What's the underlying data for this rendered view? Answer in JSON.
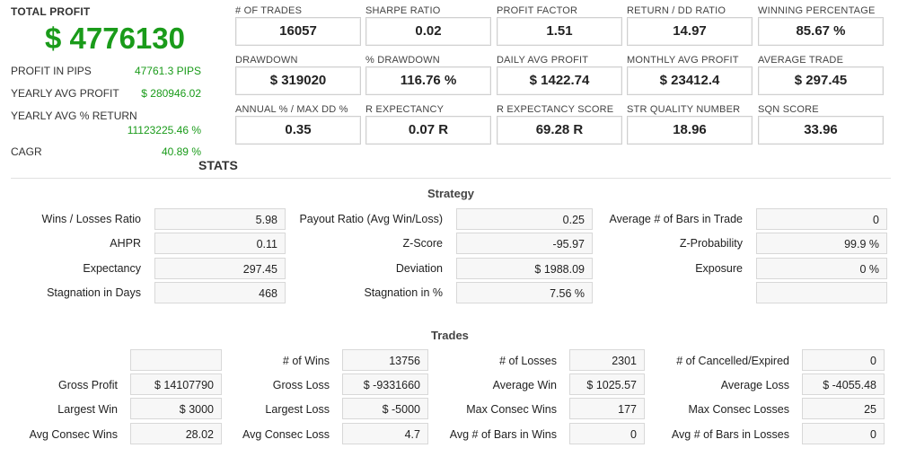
{
  "summary": {
    "total_profit_label": "TOTAL PROFIT",
    "total_profit_value": "$ 4776130",
    "rows": [
      {
        "label": "PROFIT IN PIPS",
        "value": "47761.3 PIPS"
      },
      {
        "label": "YEARLY AVG PROFIT",
        "value": "$ 280946.02"
      },
      {
        "label": "YEARLY AVG % RETURN",
        "value": "11123225.46 %"
      },
      {
        "label": "CAGR",
        "value": "40.89 %"
      }
    ]
  },
  "metrics": [
    {
      "label": "# OF TRADES",
      "value": "16057"
    },
    {
      "label": "SHARPE RATIO",
      "value": "0.02"
    },
    {
      "label": "PROFIT FACTOR",
      "value": "1.51"
    },
    {
      "label": "RETURN / DD RATIO",
      "value": "14.97"
    },
    {
      "label": "WINNING PERCENTAGE",
      "value": "85.67 %"
    },
    {
      "label": "DRAWDOWN",
      "value": "$ 319020"
    },
    {
      "label": "% DRAWDOWN",
      "value": "116.76 %"
    },
    {
      "label": "DAILY AVG PROFIT",
      "value": "$ 1422.74"
    },
    {
      "label": "MONTHLY AVG PROFIT",
      "value": "$ 23412.4"
    },
    {
      "label": "AVERAGE TRADE",
      "value": "$ 297.45"
    },
    {
      "label": "ANNUAL % / MAX DD %",
      "value": "0.35"
    },
    {
      "label": "R EXPECTANCY",
      "value": "0.07 R"
    },
    {
      "label": "R EXPECTANCY SCORE",
      "value": "69.28 R"
    },
    {
      "label": "STR QUALITY NUMBER",
      "value": "18.96"
    },
    {
      "label": "SQN SCORE",
      "value": "33.96"
    }
  ],
  "stats_title": "STATS",
  "strategy": {
    "title": "Strategy",
    "rows": [
      [
        {
          "label": "Wins / Losses Ratio",
          "value": "5.98"
        },
        {
          "label": "Payout Ratio (Avg Win/Loss)",
          "value": "0.25"
        },
        {
          "label": "Average # of Bars in Trade",
          "value": "0"
        }
      ],
      [
        {
          "label": "AHPR",
          "value": "0.11"
        },
        {
          "label": "Z-Score",
          "value": "-95.97"
        },
        {
          "label": "Z-Probability",
          "value": "99.9 %"
        }
      ],
      [
        {
          "label": "Expectancy",
          "value": "297.45"
        },
        {
          "label": "Deviation",
          "value": "$ 1988.09"
        },
        {
          "label": "Exposure",
          "value": "0 %"
        }
      ],
      [
        {
          "label": "Stagnation in Days",
          "value": "468"
        },
        {
          "label": "Stagnation in %",
          "value": "7.56 %"
        },
        {
          "label": "",
          "value": ""
        }
      ]
    ]
  },
  "trades": {
    "title": "Trades",
    "rows": [
      [
        {
          "label": "",
          "value": ""
        },
        {
          "label": "# of Wins",
          "value": "13756"
        },
        {
          "label": "# of Losses",
          "value": "2301"
        },
        {
          "label": "# of Cancelled/Expired",
          "value": "0"
        }
      ],
      [
        {
          "label": "Gross Profit",
          "value": "$ 14107790"
        },
        {
          "label": "Gross Loss",
          "value": "$ -9331660"
        },
        {
          "label": "Average Win",
          "value": "$ 1025.57"
        },
        {
          "label": "Average Loss",
          "value": "$ -4055.48"
        }
      ],
      [
        {
          "label": "Largest Win",
          "value": "$ 3000"
        },
        {
          "label": "Largest Loss",
          "value": "$ -5000"
        },
        {
          "label": "Max Consec Wins",
          "value": "177"
        },
        {
          "label": "Max Consec Losses",
          "value": "25"
        }
      ],
      [
        {
          "label": "Avg Consec Wins",
          "value": "28.02"
        },
        {
          "label": "Avg Consec Loss",
          "value": "4.7"
        },
        {
          "label": "Avg # of Bars in Wins",
          "value": "0"
        },
        {
          "label": "Avg # of Bars in Losses",
          "value": "0"
        }
      ]
    ]
  }
}
